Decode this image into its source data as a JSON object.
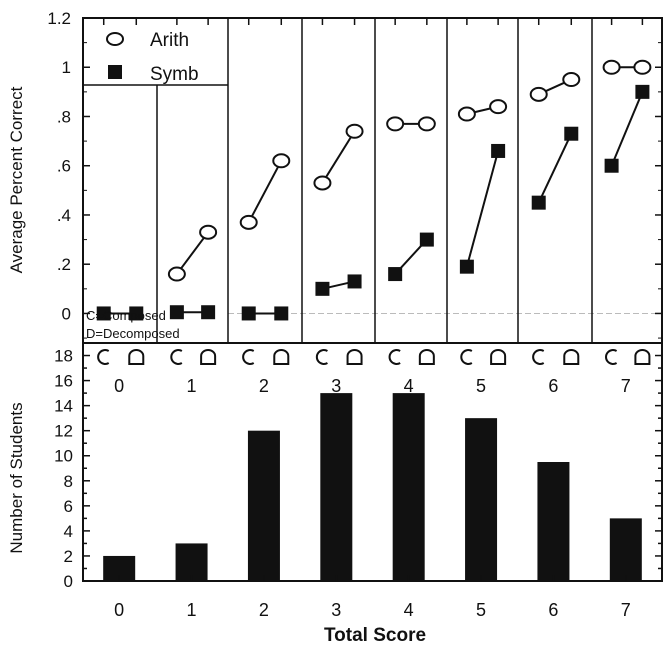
{
  "chart_data": [
    {
      "type": "line",
      "ylabel": "Average Percent Correct",
      "ylim": [
        -0.12,
        1.2
      ],
      "y_ticks": [
        "0",
        ".2",
        ".4",
        ".6",
        ".8",
        "1",
        "1.2"
      ],
      "y_tick_values": [
        0,
        0.2,
        0.4,
        0.6,
        0.8,
        1.0,
        1.2
      ],
      "x_symbol_labels": [
        "C",
        "D"
      ],
      "panels": [
        "0",
        "1",
        "2",
        "3",
        "4",
        "5",
        "6",
        "7"
      ],
      "series": [
        {
          "name": "Arith",
          "marker": "open-circle",
          "values": [
            [
              null,
              null
            ],
            [
              0.16,
              0.33
            ],
            [
              0.37,
              0.62
            ],
            [
              0.53,
              0.74
            ],
            [
              0.77,
              0.77
            ],
            [
              0.81,
              0.84
            ],
            [
              0.89,
              0.95
            ],
            [
              1.0,
              1.0
            ]
          ]
        },
        {
          "name": "Symb",
          "marker": "filled-square",
          "values": [
            [
              0.0,
              0.0
            ],
            [
              0.005,
              0.005
            ],
            [
              0.0,
              0.0
            ],
            [
              0.1,
              0.13
            ],
            [
              0.16,
              0.3
            ],
            [
              0.19,
              0.66
            ],
            [
              0.45,
              0.73
            ],
            [
              0.6,
              0.9
            ]
          ]
        }
      ],
      "annotations": [
        "C=Composed",
        "D=Decomposed"
      ],
      "legend_position": "top-left"
    },
    {
      "type": "bar",
      "xlabel": "Total Score",
      "ylabel": "Number of Students",
      "categories": [
        "0",
        "1",
        "2",
        "3",
        "4",
        "5",
        "6",
        "7"
      ],
      "values": [
        2,
        3,
        12,
        15,
        15,
        13,
        9.5,
        5
      ],
      "ylim": [
        0,
        19
      ],
      "y_ticks": [
        "0",
        "2",
        "4",
        "6",
        "8",
        "10",
        "12",
        "14",
        "16",
        "18"
      ]
    }
  ],
  "colors": {
    "ink": "#111111",
    "grid": "#bbbbbb"
  }
}
